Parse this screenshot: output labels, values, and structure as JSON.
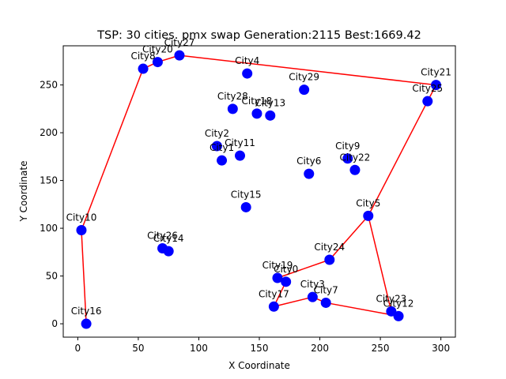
{
  "chart_data": {
    "type": "scatter",
    "title": "TSP: 30 cities. pmx swap Generation:2115 Best:1669.42",
    "xlabel": "X Coordinate",
    "ylabel": "Y Coordinate",
    "xlim": [
      -12,
      312
    ],
    "ylim": [
      -14,
      291
    ],
    "xticks": [
      0,
      50,
      100,
      150,
      200,
      250,
      300
    ],
    "yticks": [
      0,
      50,
      100,
      150,
      200,
      250
    ],
    "grid": false,
    "colors": {
      "route": "#ff0000",
      "city": "#0000ff"
    },
    "cities": [
      {
        "name": "City0",
        "x": 172,
        "y": 44
      },
      {
        "name": "City1",
        "x": 119,
        "y": 171
      },
      {
        "name": "City2",
        "x": 115,
        "y": 186
      },
      {
        "name": "City3",
        "x": 194,
        "y": 28
      },
      {
        "name": "City4",
        "x": 140,
        "y": 262
      },
      {
        "name": "City5",
        "x": 240,
        "y": 113
      },
      {
        "name": "City6",
        "x": 191,
        "y": 157
      },
      {
        "name": "City7",
        "x": 205,
        "y": 22
      },
      {
        "name": "City8",
        "x": 54,
        "y": 267
      },
      {
        "name": "City9",
        "x": 223,
        "y": 173
      },
      {
        "name": "City10",
        "x": 3,
        "y": 98
      },
      {
        "name": "City11",
        "x": 134,
        "y": 176
      },
      {
        "name": "City12",
        "x": 265,
        "y": 8
      },
      {
        "name": "City13",
        "x": 159,
        "y": 218
      },
      {
        "name": "City14",
        "x": 75,
        "y": 76
      },
      {
        "name": "City15",
        "x": 139,
        "y": 122
      },
      {
        "name": "City16",
        "x": 7,
        "y": 0
      },
      {
        "name": "City17",
        "x": 162,
        "y": 18
      },
      {
        "name": "City18",
        "x": 148,
        "y": 220
      },
      {
        "name": "City19",
        "x": 165,
        "y": 48
      },
      {
        "name": "City20",
        "x": 66,
        "y": 274
      },
      {
        "name": "City21",
        "x": 296,
        "y": 250
      },
      {
        "name": "City22",
        "x": 229,
        "y": 161
      },
      {
        "name": "City23",
        "x": 259,
        "y": 13
      },
      {
        "name": "City24",
        "x": 208,
        "y": 67
      },
      {
        "name": "City25",
        "x": 289,
        "y": 233
      },
      {
        "name": "City26",
        "x": 70,
        "y": 79
      },
      {
        "name": "City27",
        "x": 84,
        "y": 281
      },
      {
        "name": "City28",
        "x": 128,
        "y": 225
      },
      {
        "name": "City29",
        "x": 187,
        "y": 245
      }
    ],
    "route": [
      "City16",
      "City10",
      "City8",
      "City20",
      "City27",
      "City21",
      "City25",
      "City5",
      "City23",
      "City12",
      "City7",
      "City3",
      "City17",
      "City0",
      "City19",
      "City24",
      "City5"
    ]
  }
}
